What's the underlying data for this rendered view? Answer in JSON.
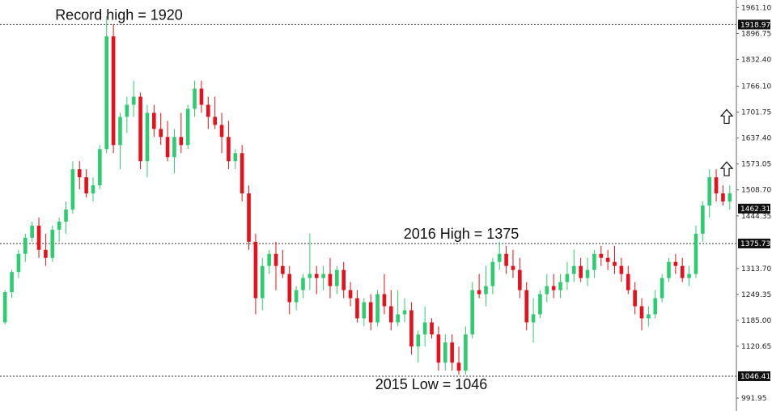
{
  "chart_data": {
    "type": "candlestick",
    "colors": {
      "up": "#2ecc71",
      "down": "#e8101a",
      "wick_up": "#2ecc71",
      "wick_down": "#e8101a",
      "level_line": "#333333",
      "axis_box": "#111111"
    },
    "y_axis": {
      "ticks": [
        "1961.10",
        "1896.75",
        "1832.40",
        "1766.10",
        "1701.75",
        "1637.40",
        "1573.05",
        "1508.70",
        "1444.35",
        "1313.70",
        "1249.35",
        "1185.00",
        "1120.65",
        "991.95"
      ],
      "ylim": [
        960,
        1980
      ],
      "highlighted": [
        {
          "label": "1918.97",
          "value": 1918.97
        },
        {
          "label": "1462.31",
          "value": 1462.31
        },
        {
          "label": "1375.73",
          "value": 1375.73
        },
        {
          "label": "1046.41",
          "value": 1046.41
        }
      ]
    },
    "levels": [
      {
        "value": 1918.97,
        "label": "Record high = 1920"
      },
      {
        "value": 1375.73,
        "label": "2016 High = 1375"
      },
      {
        "value": 1046.41,
        "label": "2015 Low = 1046"
      }
    ],
    "arrows": [
      {
        "value": 1690,
        "direction": "up",
        "icon": "up-arrow-icon"
      },
      {
        "value": 1560,
        "direction": "up",
        "icon": "up-arrow-icon"
      }
    ],
    "candles": [
      [
        1180,
        1260,
        1175,
        1255
      ],
      [
        1255,
        1310,
        1240,
        1305
      ],
      [
        1305,
        1360,
        1290,
        1350
      ],
      [
        1350,
        1400,
        1330,
        1390
      ],
      [
        1390,
        1430,
        1380,
        1420
      ],
      [
        1420,
        1440,
        1340,
        1360
      ],
      [
        1360,
        1400,
        1320,
        1340
      ],
      [
        1340,
        1420,
        1330,
        1410
      ],
      [
        1410,
        1440,
        1380,
        1430
      ],
      [
        1430,
        1480,
        1400,
        1460
      ],
      [
        1460,
        1580,
        1450,
        1560
      ],
      [
        1560,
        1580,
        1510,
        1540
      ],
      [
        1540,
        1560,
        1490,
        1500
      ],
      [
        1500,
        1540,
        1480,
        1520
      ],
      [
        1520,
        1620,
        1510,
        1610
      ],
      [
        1610,
        1940,
        1600,
        1890
      ],
      [
        1890,
        1920,
        1600,
        1620
      ],
      [
        1620,
        1700,
        1560,
        1690
      ],
      [
        1690,
        1740,
        1650,
        1720
      ],
      [
        1720,
        1780,
        1690,
        1740
      ],
      [
        1740,
        1750,
        1560,
        1580
      ],
      [
        1580,
        1720,
        1540,
        1700
      ],
      [
        1700,
        1720,
        1640,
        1660
      ],
      [
        1660,
        1700,
        1620,
        1640
      ],
      [
        1640,
        1680,
        1580,
        1590
      ],
      [
        1590,
        1660,
        1550,
        1640
      ],
      [
        1640,
        1700,
        1600,
        1620
      ],
      [
        1620,
        1720,
        1610,
        1710
      ],
      [
        1710,
        1780,
        1690,
        1760
      ],
      [
        1760,
        1780,
        1700,
        1720
      ],
      [
        1720,
        1740,
        1660,
        1690
      ],
      [
        1690,
        1740,
        1660,
        1670
      ],
      [
        1670,
        1700,
        1600,
        1640
      ],
      [
        1640,
        1680,
        1560,
        1580
      ],
      [
        1580,
        1610,
        1560,
        1600
      ],
      [
        1600,
        1620,
        1480,
        1500
      ],
      [
        1500,
        1520,
        1360,
        1380
      ],
      [
        1380,
        1400,
        1200,
        1240
      ],
      [
        1240,
        1340,
        1210,
        1320
      ],
      [
        1320,
        1360,
        1300,
        1350
      ],
      [
        1350,
        1380,
        1260,
        1320
      ],
      [
        1320,
        1360,
        1290,
        1300
      ],
      [
        1300,
        1320,
        1200,
        1230
      ],
      [
        1230,
        1270,
        1210,
        1260
      ],
      [
        1260,
        1300,
        1240,
        1290
      ],
      [
        1290,
        1400,
        1260,
        1300
      ],
      [
        1300,
        1320,
        1250,
        1290
      ],
      [
        1290,
        1320,
        1260,
        1300
      ],
      [
        1300,
        1340,
        1240,
        1270
      ],
      [
        1270,
        1320,
        1250,
        1310
      ],
      [
        1310,
        1330,
        1240,
        1260
      ],
      [
        1260,
        1280,
        1220,
        1240
      ],
      [
        1240,
        1260,
        1180,
        1190
      ],
      [
        1190,
        1240,
        1170,
        1230
      ],
      [
        1230,
        1250,
        1160,
        1180
      ],
      [
        1180,
        1260,
        1170,
        1250
      ],
      [
        1250,
        1300,
        1200,
        1220
      ],
      [
        1220,
        1260,
        1160,
        1180
      ],
      [
        1180,
        1260,
        1170,
        1200
      ],
      [
        1200,
        1240,
        1180,
        1210
      ],
      [
        1210,
        1230,
        1100,
        1120
      ],
      [
        1120,
        1160,
        1080,
        1150
      ],
      [
        1150,
        1220,
        1120,
        1180
      ],
      [
        1180,
        1190,
        1140,
        1150
      ],
      [
        1150,
        1170,
        1060,
        1080
      ],
      [
        1080,
        1150,
        1060,
        1130
      ],
      [
        1130,
        1150,
        1060,
        1080
      ],
      [
        1080,
        1120,
        1050,
        1060
      ],
      [
        1060,
        1170,
        1050,
        1150
      ],
      [
        1150,
        1280,
        1140,
        1260
      ],
      [
        1260,
        1300,
        1240,
        1250
      ],
      [
        1250,
        1320,
        1220,
        1270
      ],
      [
        1270,
        1340,
        1250,
        1330
      ],
      [
        1330,
        1380,
        1310,
        1350
      ],
      [
        1350,
        1370,
        1300,
        1320
      ],
      [
        1320,
        1360,
        1290,
        1310
      ],
      [
        1310,
        1340,
        1240,
        1260
      ],
      [
        1260,
        1280,
        1160,
        1180
      ],
      [
        1180,
        1240,
        1130,
        1200
      ],
      [
        1200,
        1260,
        1190,
        1250
      ],
      [
        1250,
        1300,
        1230,
        1270
      ],
      [
        1270,
        1300,
        1240,
        1260
      ],
      [
        1260,
        1300,
        1240,
        1280
      ],
      [
        1280,
        1330,
        1260,
        1300
      ],
      [
        1300,
        1360,
        1280,
        1320
      ],
      [
        1320,
        1340,
        1280,
        1290
      ],
      [
        1290,
        1340,
        1270,
        1310
      ],
      [
        1310,
        1360,
        1290,
        1350
      ],
      [
        1350,
        1370,
        1320,
        1340
      ],
      [
        1340,
        1360,
        1310,
        1330
      ],
      [
        1330,
        1370,
        1300,
        1320
      ],
      [
        1320,
        1340,
        1280,
        1300
      ],
      [
        1300,
        1320,
        1250,
        1260
      ],
      [
        1260,
        1280,
        1200,
        1220
      ],
      [
        1220,
        1240,
        1160,
        1190
      ],
      [
        1190,
        1220,
        1170,
        1200
      ],
      [
        1200,
        1260,
        1190,
        1240
      ],
      [
        1240,
        1300,
        1230,
        1290
      ],
      [
        1290,
        1340,
        1280,
        1330
      ],
      [
        1330,
        1350,
        1300,
        1320
      ],
      [
        1320,
        1340,
        1280,
        1290
      ],
      [
        1290,
        1320,
        1270,
        1300
      ],
      [
        1300,
        1420,
        1290,
        1400
      ],
      [
        1400,
        1480,
        1380,
        1470
      ],
      [
        1470,
        1560,
        1440,
        1540
      ],
      [
        1540,
        1560,
        1480,
        1500
      ],
      [
        1500,
        1520,
        1470,
        1480
      ],
      [
        1480,
        1520,
        1460,
        1500
      ]
    ]
  }
}
